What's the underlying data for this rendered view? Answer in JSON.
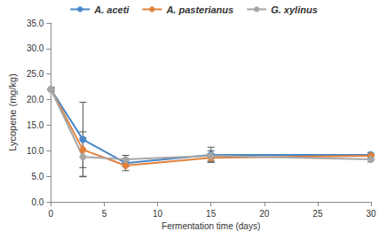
{
  "chart_data": {
    "type": "line",
    "x_label": "Fermentation time (days)",
    "y_label": "Lycopene (mg/kg)",
    "x": [
      0,
      3,
      7,
      15,
      30
    ],
    "series": [
      {
        "name": "A. aceti",
        "color": "#4a86c5",
        "marker": "circle",
        "values": [
          22.0,
          12.2,
          7.6,
          9.2,
          9.2
        ],
        "errors": [
          0.4,
          7.3,
          0.7,
          1.5,
          0.5
        ]
      },
      {
        "name": "A. pasterianus",
        "color": "#e2813c",
        "marker": "circle",
        "values": [
          22.0,
          10.2,
          7.1,
          8.6,
          9.0
        ],
        "errors": [
          0.3,
          3.5,
          1.0,
          0.8,
          0.5
        ]
      },
      {
        "name": "G. xylinus",
        "color": "#a6a6a6",
        "marker": "circle",
        "values": [
          22.0,
          8.8,
          8.3,
          9.0,
          8.3
        ],
        "errors": [
          0.3,
          3.8,
          0.8,
          1.0,
          0.5
        ]
      }
    ],
    "xlim": [
      0,
      30
    ],
    "xticks": [
      0,
      5,
      10,
      15,
      20,
      25,
      30
    ],
    "ylim": [
      0,
      35
    ],
    "yticks": [
      {
        "value": 0,
        "label": "0.0"
      },
      {
        "value": 5,
        "label": "5.0"
      },
      {
        "value": 10,
        "label": "10.0"
      },
      {
        "value": 15,
        "label": "15.0"
      },
      {
        "value": 20,
        "label": "20.0"
      },
      {
        "value": 25,
        "label": "25.0"
      },
      {
        "value": 30,
        "label": "30.0"
      },
      {
        "value": 35,
        "label": "35.0"
      }
    ],
    "grid": false,
    "legend": "top"
  }
}
